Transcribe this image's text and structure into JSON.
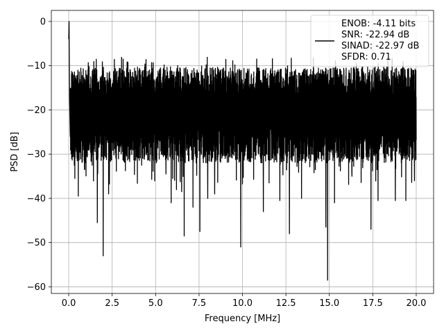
{
  "chart_data": {
    "type": "line",
    "title": "",
    "xlabel": "Frequency [MHz]",
    "ylabel": "PSD [dB]",
    "xlim": [
      -1.0,
      21.0
    ],
    "ylim": [
      -61.5,
      2.5
    ],
    "xticks": [
      0.0,
      2.5,
      5.0,
      7.5,
      10.0,
      12.5,
      15.0,
      17.5,
      20.0
    ],
    "xtick_labels": [
      "0.0",
      "2.5",
      "5.0",
      "7.5",
      "10.0",
      "12.5",
      "15.0",
      "17.5",
      "20.0"
    ],
    "yticks": [
      0,
      -10,
      -20,
      -30,
      -40,
      -50,
      -60
    ],
    "ytick_labels": [
      "0",
      "−10",
      "−20",
      "−30",
      "−40",
      "−50",
      "−60"
    ],
    "grid": true,
    "legend_position": "top-right",
    "series": [
      {
        "color": "#000000",
        "x_range": [
          0.0,
          20.0
        ],
        "peak": {
          "x": 0.02,
          "y": 0.0
        },
        "typical_upper_envelope_db": -9.5,
        "typical_lower_envelope_db": -28.0,
        "deep_nulls": [
          {
            "x": 0.35,
            "y": -35.5
          },
          {
            "x": 0.55,
            "y": -39.5
          },
          {
            "x": 1.35,
            "y": -32.5
          },
          {
            "x": 1.65,
            "y": -45.5
          },
          {
            "x": 1.98,
            "y": -53.0
          },
          {
            "x": 2.3,
            "y": -39.0
          },
          {
            "x": 4.2,
            "y": -32.5
          },
          {
            "x": 5.6,
            "y": -34.5
          },
          {
            "x": 5.9,
            "y": -41.0
          },
          {
            "x": 6.2,
            "y": -38.0
          },
          {
            "x": 6.5,
            "y": -38.5
          },
          {
            "x": 6.65,
            "y": -48.5
          },
          {
            "x": 7.15,
            "y": -42.0
          },
          {
            "x": 7.55,
            "y": -47.5
          },
          {
            "x": 8.0,
            "y": -40.0
          },
          {
            "x": 8.4,
            "y": -39.0
          },
          {
            "x": 9.9,
            "y": -51.0
          },
          {
            "x": 11.2,
            "y": -43.0
          },
          {
            "x": 12.15,
            "y": -40.5
          },
          {
            "x": 12.7,
            "y": -48.0
          },
          {
            "x": 13.4,
            "y": -40.0
          },
          {
            "x": 14.8,
            "y": -46.5
          },
          {
            "x": 14.9,
            "y": -58.5
          },
          {
            "x": 15.3,
            "y": -41.0
          },
          {
            "x": 16.3,
            "y": -35.0
          },
          {
            "x": 17.4,
            "y": -47.0
          },
          {
            "x": 17.8,
            "y": -40.5
          },
          {
            "x": 18.8,
            "y": -40.5
          },
          {
            "x": 19.4,
            "y": -40.5
          },
          {
            "x": 19.9,
            "y": -36.0
          }
        ]
      }
    ],
    "legend": {
      "lines": [
        "ENOB: -4.11 bits",
        "SNR: -22.94 dB",
        "SINAD: -22.97 dB",
        "SFDR: 0.71"
      ]
    }
  }
}
